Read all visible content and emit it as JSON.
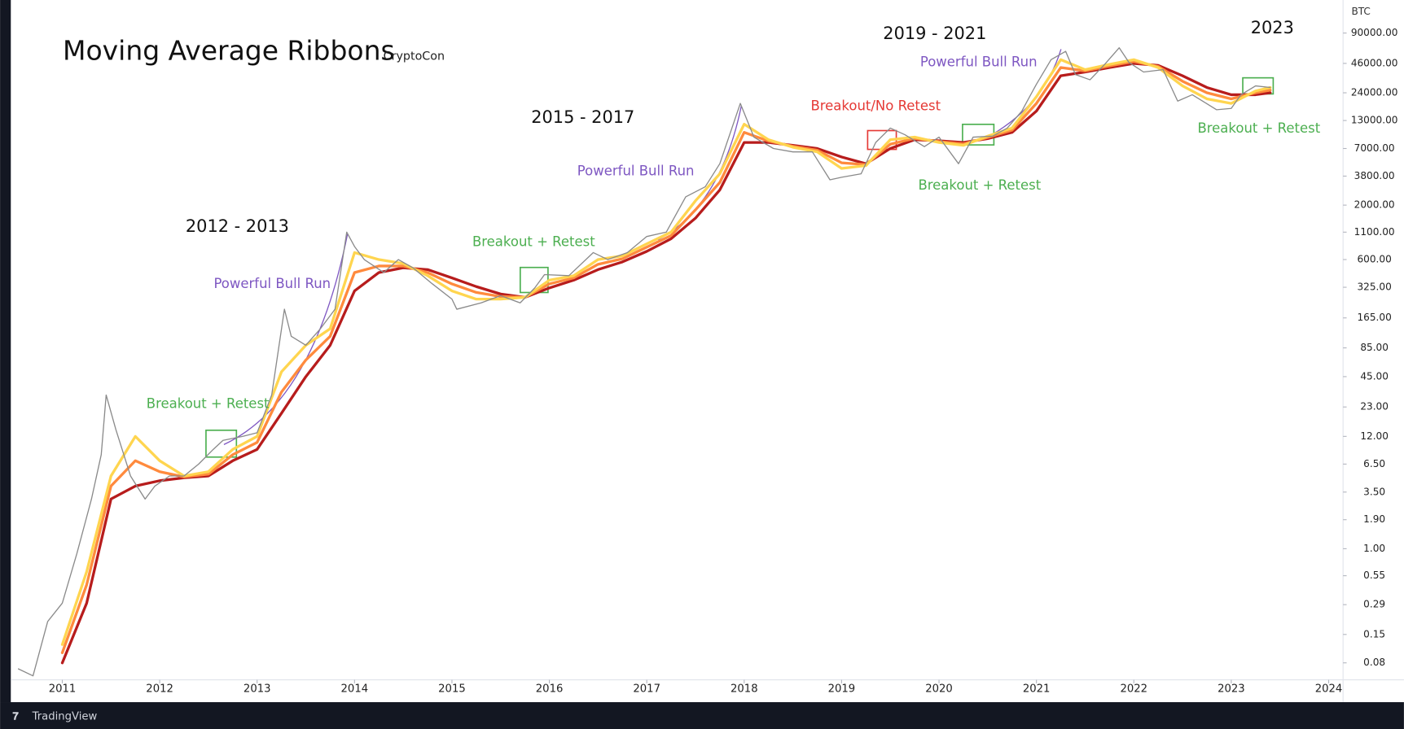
{
  "chart_data": {
    "type": "line",
    "title": "Moving Average Ribbons",
    "subtitle": "CryptoCon",
    "y_axis_label": "BTC",
    "footer": "TradingView",
    "log_scale": true,
    "grid": false,
    "xlim": [
      2010.49,
      2024.12
    ],
    "xticks": [
      2011,
      2012,
      2013,
      2014,
      2015,
      2016,
      2017,
      2018,
      2019,
      2020,
      2021,
      2022,
      2023,
      2024
    ],
    "ylim": [
      0.055,
      187000
    ],
    "yticks": [
      {
        "value": 90000,
        "label": "90000.00"
      },
      {
        "value": 46000,
        "label": "46000.00"
      },
      {
        "value": 24000,
        "label": "24000.00"
      },
      {
        "value": 13000,
        "label": "13000.00"
      },
      {
        "value": 7000,
        "label": "7000.00"
      },
      {
        "value": 3800,
        "label": "3800.00"
      },
      {
        "value": 2000,
        "label": "2000.00"
      },
      {
        "value": 1100,
        "label": "1100.00"
      },
      {
        "value": 600,
        "label": "600.00"
      },
      {
        "value": 325,
        "label": "325.00"
      },
      {
        "value": 165,
        "label": "165.00"
      },
      {
        "value": 85,
        "label": "85.00"
      },
      {
        "value": 45,
        "label": "45.00"
      },
      {
        "value": 23,
        "label": "23.00"
      },
      {
        "value": 12,
        "label": "12.00"
      },
      {
        "value": 6.5,
        "label": "6.50"
      },
      {
        "value": 3.5,
        "label": "3.50"
      },
      {
        "value": 1.9,
        "label": "1.90"
      },
      {
        "value": 1,
        "label": "1.00"
      },
      {
        "value": 0.55,
        "label": "0.55"
      },
      {
        "value": 0.29,
        "label": "0.29"
      },
      {
        "value": 0.15,
        "label": "0.15"
      },
      {
        "value": 0.08,
        "label": "0.08"
      }
    ],
    "series": [
      {
        "color": "#8a8a8a",
        "width": 1.2,
        "x": [
          2010.55,
          2010.7,
          2010.85,
          2011.0,
          2011.15,
          2011.3,
          2011.4,
          2011.45,
          2011.55,
          2011.7,
          2011.85,
          2011.95,
          2012.1,
          2012.25,
          2012.4,
          2012.55,
          2012.65,
          2012.85,
          2013.0,
          2013.15,
          2013.28,
          2013.35,
          2013.5,
          2013.65,
          2013.8,
          2013.92,
          2014.0,
          2014.1,
          2014.3,
          2014.45,
          2014.6,
          2014.8,
          2015.0,
          2015.05,
          2015.3,
          2015.5,
          2015.7,
          2015.85,
          2015.95,
          2016.2,
          2016.45,
          2016.6,
          2016.8,
          2017.0,
          2017.2,
          2017.4,
          2017.6,
          2017.75,
          2017.96,
          2018.1,
          2018.3,
          2018.5,
          2018.7,
          2018.88,
          2019.0,
          2019.2,
          2019.35,
          2019.5,
          2019.65,
          2019.85,
          2020.0,
          2020.2,
          2020.35,
          2020.55,
          2020.7,
          2020.85,
          2021.0,
          2021.15,
          2021.3,
          2021.4,
          2021.55,
          2021.7,
          2021.85,
          2021.95,
          2022.1,
          2022.3,
          2022.45,
          2022.6,
          2022.85,
          2023.0,
          2023.1,
          2023.25,
          2023.4
        ],
        "values": [
          0.07,
          0.06,
          0.2,
          0.3,
          0.9,
          3,
          8,
          30,
          14,
          5,
          3,
          4,
          5,
          5,
          6.5,
          9,
          11,
          12,
          13,
          30,
          200,
          110,
          90,
          130,
          200,
          1100,
          800,
          600,
          450,
          600,
          500,
          350,
          250,
          200,
          230,
          270,
          230,
          320,
          430,
          420,
          700,
          600,
          700,
          1000,
          1100,
          2400,
          3000,
          5000,
          19000,
          9000,
          7000,
          6500,
          6500,
          3500,
          3700,
          4000,
          8000,
          11000,
          9500,
          7300,
          9000,
          5000,
          9000,
          9200,
          11000,
          16000,
          29000,
          50000,
          60000,
          36000,
          32000,
          45000,
          65000,
          47000,
          38000,
          40000,
          20000,
          23000,
          16500,
          17000,
          23000,
          28000,
          27000
        ]
      },
      {
        "color": "#ffd54f",
        "width": 3,
        "x": [
          2011.0,
          2011.25,
          2011.5,
          2011.75,
          2012.0,
          2012.25,
          2012.5,
          2012.75,
          2013.0,
          2013.25,
          2013.5,
          2013.75,
          2014.0,
          2014.25,
          2014.5,
          2014.75,
          2015.0,
          2015.25,
          2015.5,
          2015.75,
          2016.0,
          2016.25,
          2016.5,
          2016.75,
          2017.0,
          2017.25,
          2017.5,
          2017.75,
          2018.0,
          2018.25,
          2018.5,
          2018.75,
          2019.0,
          2019.25,
          2019.5,
          2019.75,
          2020.0,
          2020.25,
          2020.5,
          2020.75,
          2021.0,
          2021.25,
          2021.5,
          2021.75,
          2022.0,
          2022.25,
          2022.5,
          2022.75,
          2023.0,
          2023.25,
          2023.4
        ],
        "values": [
          0.12,
          0.6,
          5,
          12,
          7,
          5,
          5.5,
          9,
          12,
          50,
          90,
          130,
          700,
          600,
          550,
          420,
          300,
          250,
          250,
          260,
          380,
          420,
          600,
          650,
          850,
          1100,
          2200,
          4000,
          12000,
          8500,
          7200,
          6500,
          4500,
          4800,
          8500,
          9000,
          8000,
          7500,
          9200,
          11000,
          22000,
          50000,
          40000,
          45000,
          50000,
          42000,
          28000,
          21000,
          19000,
          25000,
          27000
        ]
      },
      {
        "color": "#ff8a3d",
        "width": 3,
        "x": [
          2011.0,
          2011.25,
          2011.5,
          2011.75,
          2012.0,
          2012.25,
          2012.5,
          2012.75,
          2013.0,
          2013.25,
          2013.5,
          2013.75,
          2014.0,
          2014.25,
          2014.5,
          2014.75,
          2015.0,
          2015.25,
          2015.5,
          2015.75,
          2016.0,
          2016.25,
          2016.5,
          2016.75,
          2017.0,
          2017.25,
          2017.5,
          2017.75,
          2018.0,
          2018.25,
          2018.5,
          2018.75,
          2019.0,
          2019.25,
          2019.5,
          2019.75,
          2020.0,
          2020.25,
          2020.5,
          2020.75,
          2021.0,
          2021.25,
          2021.5,
          2021.75,
          2022.0,
          2022.25,
          2022.5,
          2022.75,
          2023.0,
          2023.25,
          2023.4
        ],
        "values": [
          0.1,
          0.45,
          4,
          7,
          5.5,
          4.9,
          5.2,
          8,
          10.5,
          32,
          65,
          110,
          450,
          520,
          520,
          450,
          350,
          290,
          265,
          260,
          350,
          400,
          540,
          610,
          790,
          1020,
          1800,
          3300,
          10000,
          8250,
          7350,
          6750,
          5100,
          4900,
          7700,
          8750,
          8150,
          7750,
          8950,
          10500,
          19000,
          42000,
          39000,
          43500,
          48000,
          43000,
          31000,
          24000,
          21000,
          24000,
          25500
        ]
      },
      {
        "color": "#b71c1c",
        "width": 3,
        "x": [
          2011.0,
          2011.25,
          2011.5,
          2011.75,
          2012.0,
          2012.25,
          2012.5,
          2012.75,
          2013.0,
          2013.25,
          2013.5,
          2013.75,
          2014.0,
          2014.25,
          2014.5,
          2014.75,
          2015.0,
          2015.25,
          2015.5,
          2015.75,
          2016.0,
          2016.25,
          2016.5,
          2016.75,
          2017.0,
          2017.25,
          2017.5,
          2017.75,
          2018.0,
          2018.25,
          2018.5,
          2018.75,
          2019.0,
          2019.25,
          2019.5,
          2019.75,
          2020.0,
          2020.25,
          2020.5,
          2020.75,
          2021.0,
          2021.25,
          2021.5,
          2021.75,
          2022.0,
          2022.25,
          2022.5,
          2022.75,
          2023.0,
          2023.25,
          2023.4
        ],
        "values": [
          0.08,
          0.3,
          3,
          4,
          4.5,
          4.8,
          5,
          7,
          9,
          20,
          45,
          90,
          300,
          450,
          500,
          480,
          400,
          330,
          280,
          260,
          320,
          380,
          480,
          570,
          720,
          950,
          1500,
          2800,
          8000,
          8000,
          7500,
          7000,
          5800,
          5000,
          7000,
          8500,
          8300,
          8000,
          8700,
          10000,
          16000,
          35000,
          38000,
          42000,
          46000,
          44000,
          35000,
          27000,
          23000,
          23000,
          24000
        ]
      }
    ],
    "annotations": [
      {
        "text": "2012 - 2013",
        "color": "#111111"
      },
      {
        "text": "Powerful Bull Run",
        "color": "#7e57c2"
      },
      {
        "text": "Breakout + Retest",
        "color": "#4caf50"
      },
      {
        "text": "2015 - 2017",
        "color": "#111111"
      },
      {
        "text": "Breakout + Retest",
        "color": "#4caf50"
      },
      {
        "text": "Powerful Bull Run",
        "color": "#7e57c2"
      },
      {
        "text": "Breakout/No Retest",
        "color": "#e53935"
      },
      {
        "text": "2019 - 2021",
        "color": "#111111"
      },
      {
        "text": "Powerful Bull Run",
        "color": "#7e57c2"
      },
      {
        "text": "Breakout + Retest",
        "color": "#4caf50"
      },
      {
        "text": "2023",
        "color": "#111111"
      },
      {
        "text": "Breakout + Retest",
        "color": "#4caf50"
      }
    ]
  }
}
